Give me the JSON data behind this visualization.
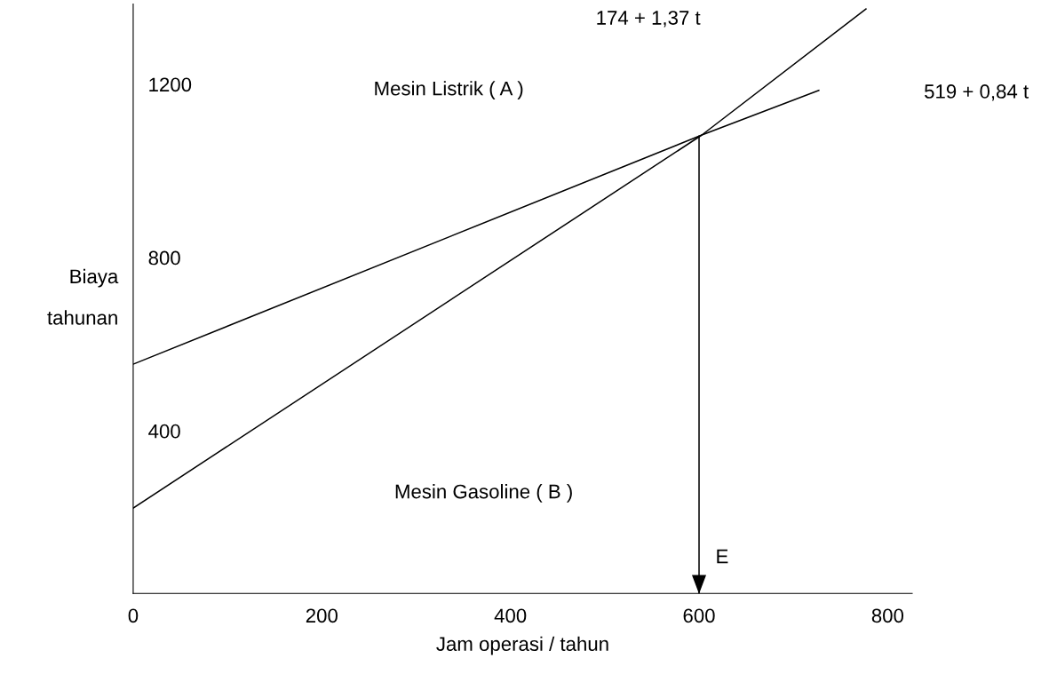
{
  "chart_data": {
    "type": "line",
    "xlabel": "Jam operasi / tahun",
    "ylabel": "Biaya\ntahunan",
    "xlim": [
      0,
      826
    ],
    "ylim": [
      25,
      1385
    ],
    "xticks": [
      0,
      200,
      400,
      600,
      800
    ],
    "yticks": [
      400,
      800,
      1200
    ],
    "series": [
      {
        "color": "#000000",
        "x": [
          0,
          603,
          727
        ],
        "values": [
          554,
          1083,
          1186
        ]
      },
      {
        "color": "#000000",
        "x": [
          0,
          603,
          777
        ],
        "values": [
          222,
          1083,
          1374
        ]
      }
    ],
    "annotations": [
      "Mesin Listrik ( A )",
      "Mesin Gasoline ( B )",
      "174 + 1,37 t",
      "519 + 0,84 t"
    ],
    "ref_lines": [
      {
        "axis": "x",
        "value": 600,
        "label": "E"
      }
    ],
    "grid": false,
    "legend": false,
    "marker": "none",
    "line_style": "solid"
  }
}
